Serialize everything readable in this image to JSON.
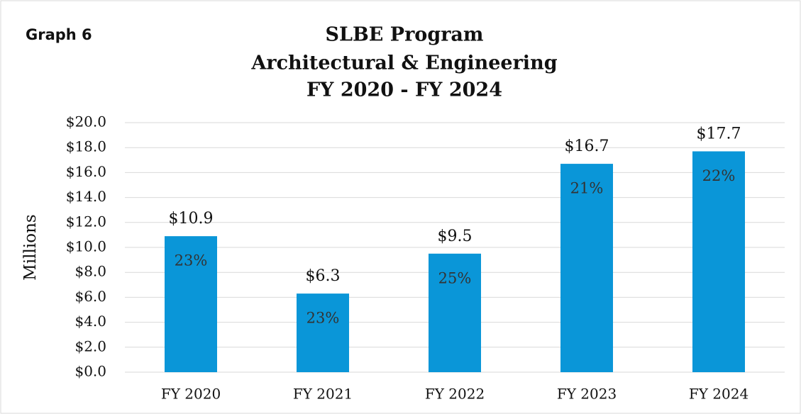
{
  "chart_data": {
    "type": "bar",
    "label": "Graph 6",
    "title": [
      "SLBE Program",
      "Architectural & Engineering",
      "FY 2020 - FY 2024"
    ],
    "y_axis_label": "Millions",
    "categories": [
      "FY 2020",
      "FY 2021",
      "FY 2022",
      "FY 2023",
      "FY 2024"
    ],
    "values": [
      10.9,
      6.3,
      9.5,
      16.7,
      17.7
    ],
    "value_labels": [
      "$10.9",
      "$6.3",
      "$9.5",
      "$16.7",
      "$17.7"
    ],
    "inner_labels": [
      "23%",
      "23%",
      "25%",
      "21%",
      "22%"
    ],
    "color": "#0a96d8",
    "ylim": [
      0,
      20
    ],
    "yticks": [
      {
        "value": 0,
        "label": "$0.0"
      },
      {
        "value": 2,
        "label": "$2.0"
      },
      {
        "value": 4,
        "label": "$4.0"
      },
      {
        "value": 6,
        "label": "$6.0"
      },
      {
        "value": 8,
        "label": "$8.0"
      },
      {
        "value": 10,
        "label": "$10.0"
      },
      {
        "value": 12,
        "label": "$12.0"
      },
      {
        "value": 14,
        "label": "$14.0"
      },
      {
        "value": 16,
        "label": "$16.0"
      },
      {
        "value": 18,
        "label": "$18.0"
      },
      {
        "value": 20,
        "label": "$20.0"
      }
    ],
    "grid": true
  }
}
